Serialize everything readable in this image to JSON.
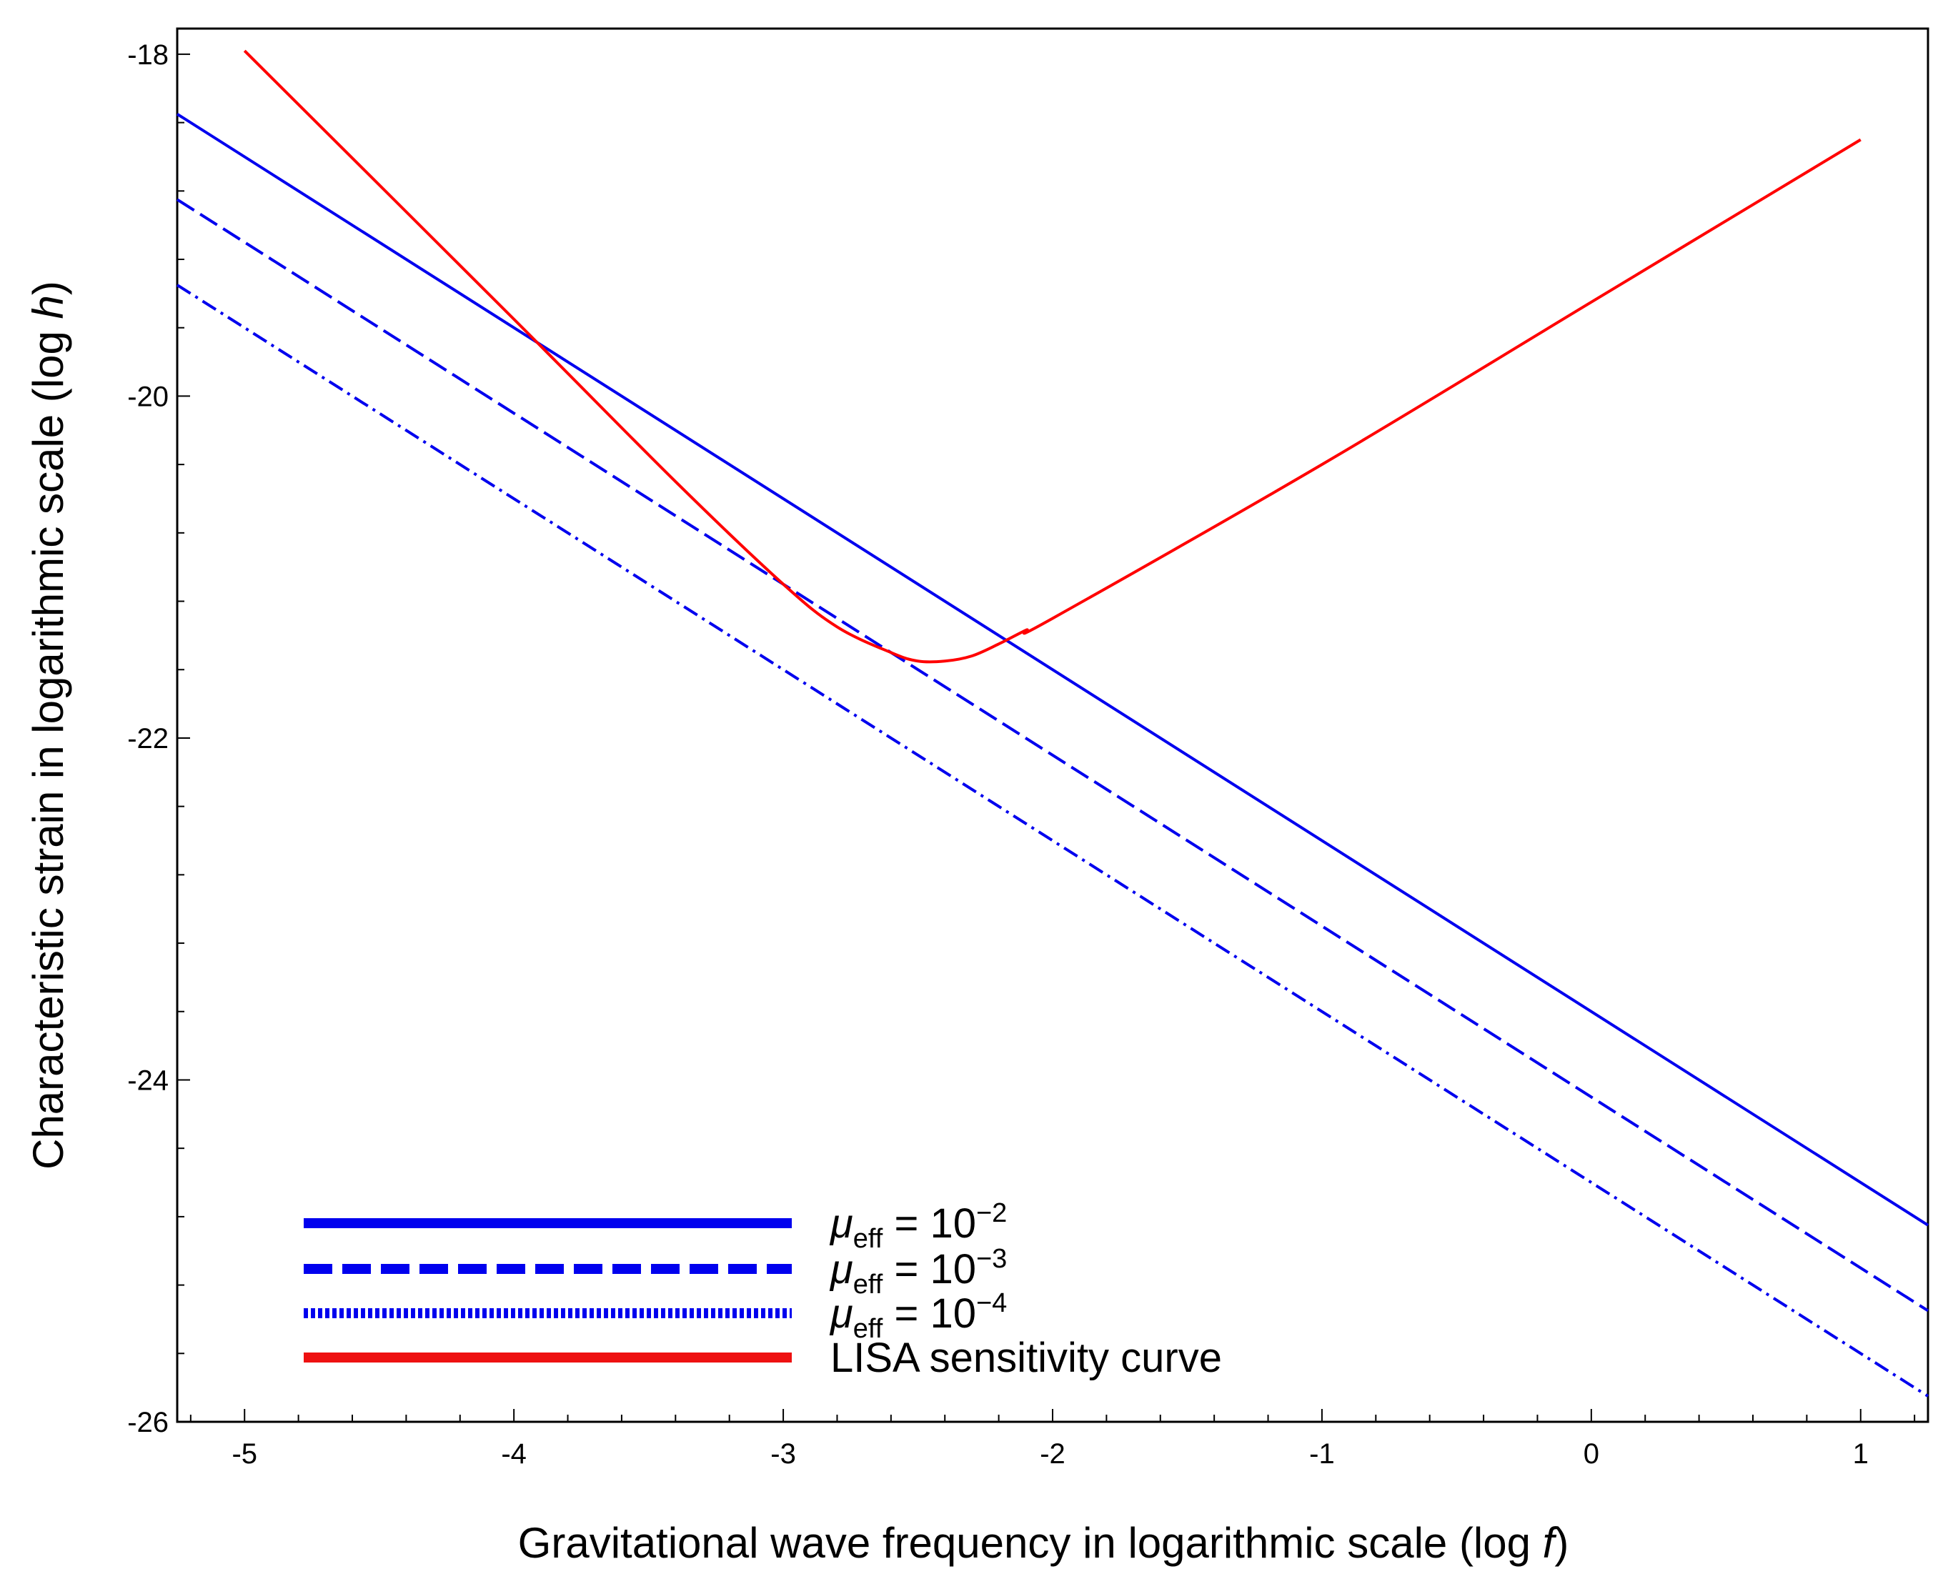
{
  "chart_data": {
    "type": "line",
    "xlabel": {
      "prefix": "Gravitational wave frequency in logarithmic scale (log ",
      "var": "f",
      "suffix": ")"
    },
    "ylabel": {
      "prefix": "Characteristic strain in logarithmic scale (log ",
      "var": "h",
      "suffix": ")"
    },
    "xlim": [
      -5.25,
      1.25
    ],
    "ylim": [
      -26,
      -17.85
    ],
    "x_ticks": [
      -5,
      -4,
      -3,
      -2,
      -1,
      0,
      1
    ],
    "x_tick_labels": [
      "-5",
      "-4",
      "-3",
      "-2",
      "-1",
      "0",
      "1"
    ],
    "y_ticks": [
      -18,
      -20,
      -22,
      -24,
      -26
    ],
    "y_tick_labels": [
      "-18",
      "-20",
      "-22",
      "-24",
      "-26"
    ],
    "series": [
      {
        "name": "mu_eff = 10^-2",
        "style": "solid",
        "color": "#0000ee",
        "x": [
          -5.25,
          1.25
        ],
        "y": [
          -18.35,
          -24.85
        ],
        "legend": {
          "symbol": "μ",
          "sub": "eff",
          "base": " = 10",
          "sup": "−2"
        }
      },
      {
        "name": "mu_eff = 10^-3",
        "style": "dash",
        "color": "#0000ee",
        "x": [
          -5.25,
          1.25
        ],
        "y": [
          -18.85,
          -25.35
        ],
        "legend": {
          "symbol": "μ",
          "sub": "eff",
          "base": " = 10",
          "sup": "−3"
        }
      },
      {
        "name": "mu_eff = 10^-4",
        "style": "dashdot",
        "color": "#0000ee",
        "x": [
          -5.25,
          1.25
        ],
        "y": [
          -19.35,
          -25.85
        ],
        "legend": {
          "symbol": "μ",
          "sub": "eff",
          "base": " = 10",
          "sup": "−4"
        }
      },
      {
        "name": "LISA sensitivity curve",
        "style": "solid",
        "color": "#ff0000",
        "x": [
          -5.0,
          -4.0,
          -3.4,
          -3.0,
          -2.8,
          -2.6,
          -2.5,
          -2.4,
          -2.3,
          -2.2,
          -2.1,
          -2.0,
          -1.0,
          0.0,
          1.0
        ],
        "y": [
          -17.98,
          -19.55,
          -20.5,
          -21.1,
          -21.35,
          -21.5,
          -21.55,
          -21.55,
          -21.52,
          -21.45,
          -21.37,
          -21.3,
          -20.4,
          -19.45,
          -18.5
        ],
        "legend": {
          "label": "LISA sensitivity curve"
        }
      }
    ]
  }
}
